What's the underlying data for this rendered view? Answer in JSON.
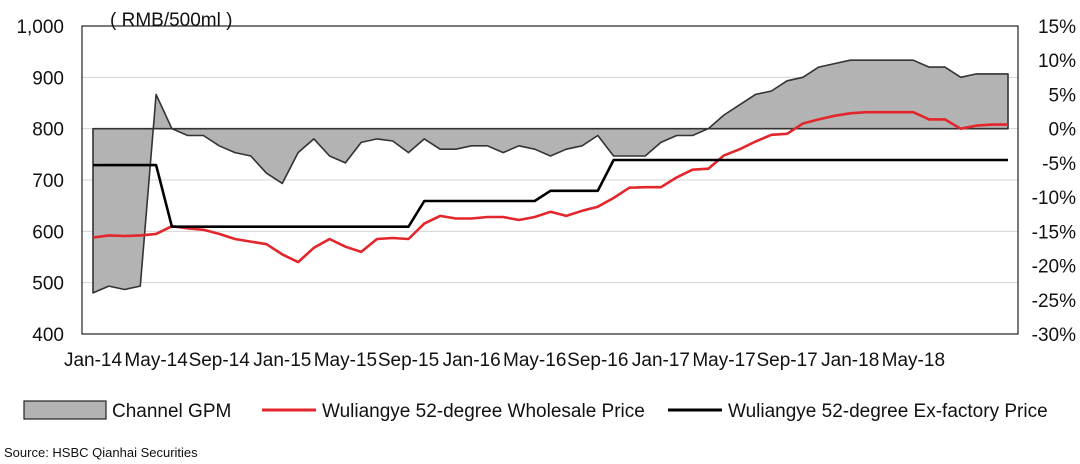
{
  "chart_data": {
    "type": "line",
    "unit_label": "( RMB/500ml )",
    "source": "Source: HSBC Qianhai Securities",
    "x_ticks": [
      "Jan-14",
      "May-14",
      "Sep-14",
      "Jan-15",
      "May-15",
      "Sep-15",
      "Jan-16",
      "May-16",
      "Sep-16",
      "Jan-17",
      "May-17",
      "Sep-17",
      "Jan-18",
      "May-18"
    ],
    "y_left": {
      "ticks": [
        "1,000",
        "900",
        "800",
        "700",
        "600",
        "500",
        "400"
      ],
      "range": [
        400,
        1000
      ]
    },
    "y_right": {
      "ticks": [
        "15%",
        "10%",
        "5%",
        "0%",
        "-5%",
        "-10%",
        "-15%",
        "-20%",
        "-25%",
        "-30%"
      ],
      "range": [
        -30,
        15
      ]
    },
    "grid": true,
    "legend_position": "bottom",
    "series": [
      {
        "name": "Channel GPM",
        "kind": "area",
        "axis": "right",
        "color": "#b3b3b3",
        "values": [
          -24,
          -23,
          -23.5,
          -23,
          5,
          0,
          -1,
          -1,
          -2.5,
          -3.5,
          -4,
          -6.5,
          -8,
          -3.5,
          -1.5,
          -4,
          -5,
          -2,
          -1.5,
          -1.8,
          -3.5,
          -1.5,
          -3,
          -3,
          -2.5,
          -2.5,
          -3.5,
          -2.5,
          -3,
          -4,
          -3,
          -2.5,
          -1,
          -4,
          -4,
          -4,
          -2,
          -1,
          -1,
          0,
          2,
          3.5,
          5,
          5.5,
          7,
          7.5,
          9,
          9.5,
          10,
          10,
          10,
          10,
          10,
          9,
          9,
          7.5,
          8,
          8,
          8
        ]
      },
      {
        "name": "Wuliangye 52-degree Wholesale Price",
        "kind": "line",
        "axis": "left",
        "color": "#e3262c",
        "values": [
          588,
          592,
          591,
          592,
          595,
          610,
          606,
          603,
          595,
          585,
          580,
          575,
          555,
          540,
          568,
          585,
          570,
          560,
          585,
          587,
          585,
          615,
          630,
          625,
          625,
          628,
          628,
          622,
          628,
          638,
          630,
          640,
          648,
          665,
          685,
          686,
          686,
          705,
          720,
          722,
          748,
          760,
          775,
          788,
          790,
          810,
          818,
          825,
          830,
          832,
          832,
          832,
          832,
          818,
          818,
          800,
          806,
          808,
          808
        ]
      },
      {
        "name": "Wuliangye 52-degree Ex-factory Price",
        "kind": "step",
        "axis": "left",
        "color": "#000000",
        "values": [
          729,
          729,
          729,
          729,
          729,
          609,
          609,
          609,
          609,
          609,
          609,
          609,
          609,
          609,
          609,
          609,
          609,
          609,
          609,
          609,
          609,
          659,
          659,
          659,
          659,
          659,
          659,
          659,
          659,
          679,
          679,
          679,
          679,
          739,
          739,
          739,
          739,
          739,
          739,
          739,
          739,
          739,
          739,
          739,
          739,
          739,
          739,
          739,
          739,
          739,
          739,
          739,
          739,
          739,
          739,
          739,
          739,
          739,
          739
        ]
      }
    ]
  }
}
